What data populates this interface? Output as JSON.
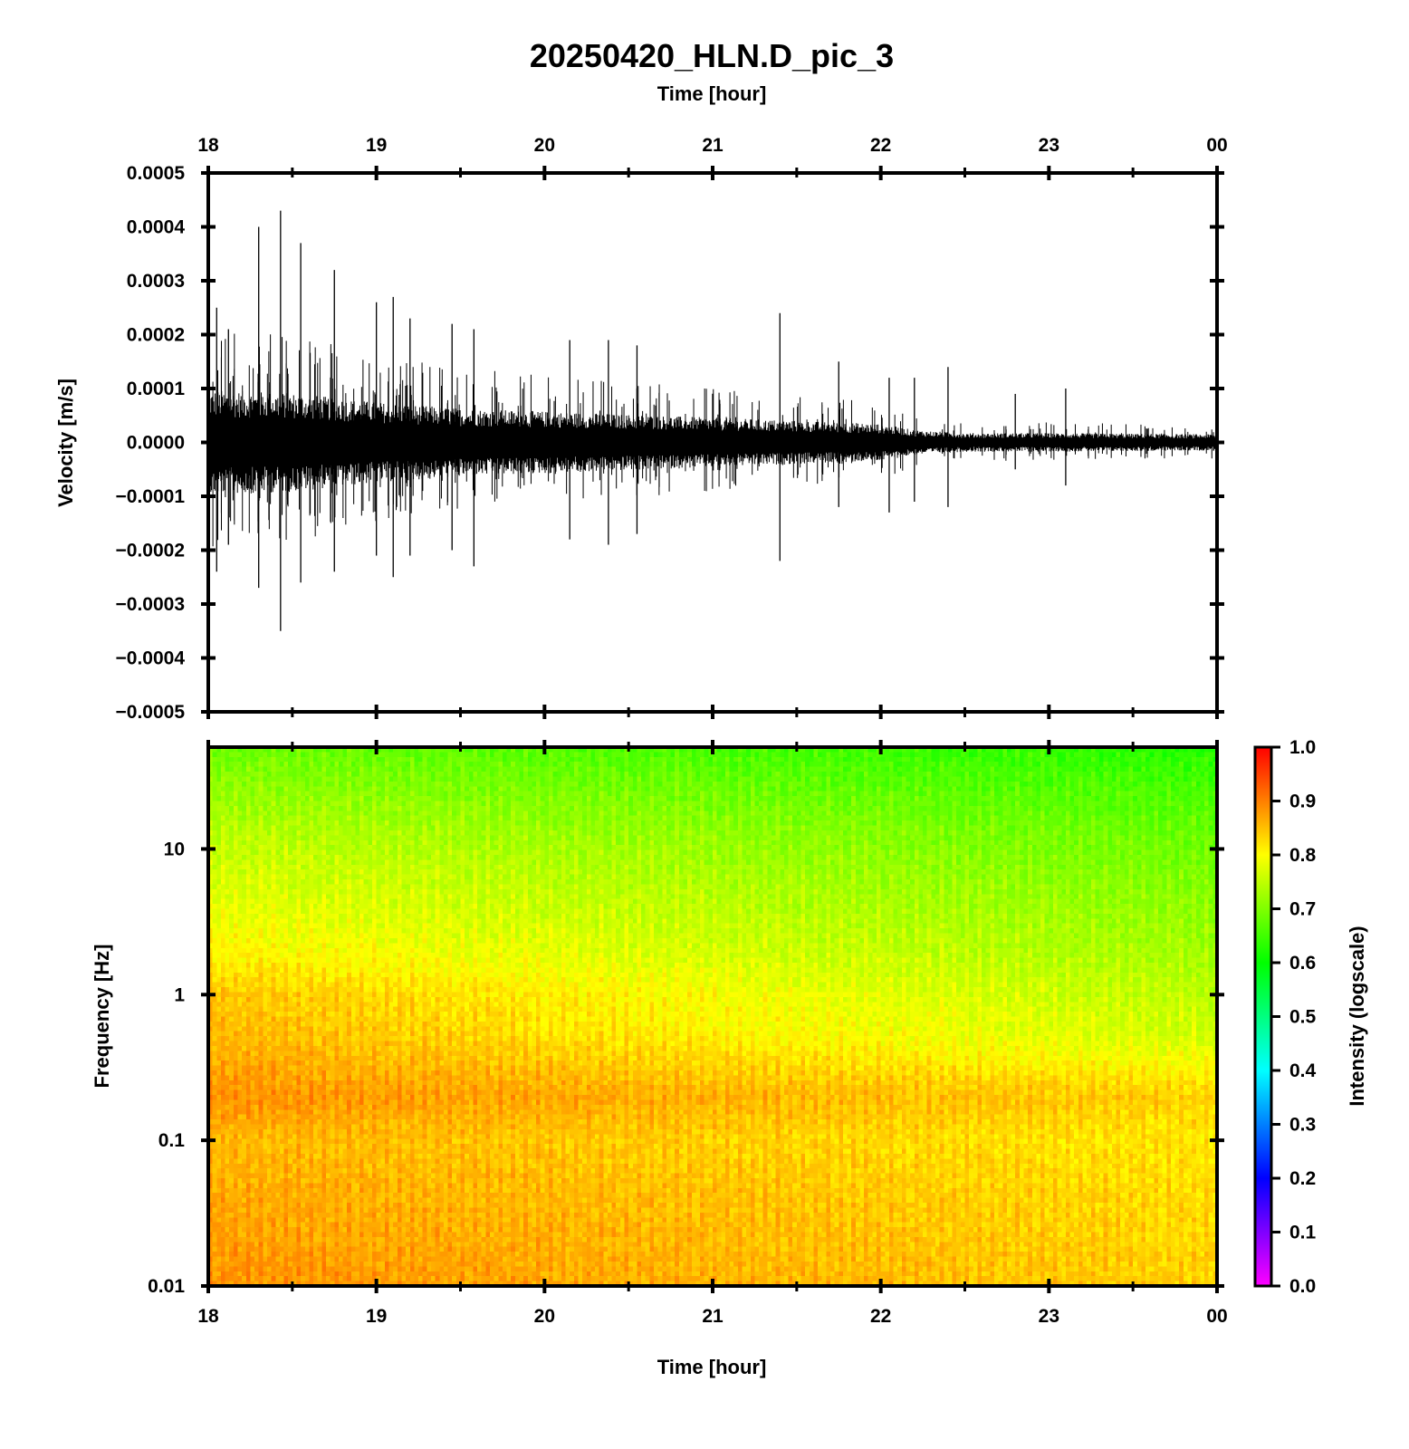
{
  "figure": {
    "title": "20250420_HLN.D_pic_3",
    "top_xlabel": "Time [hour]",
    "bottom_xlabel": "Time [hour]"
  },
  "chart_data": [
    {
      "type": "line",
      "panel": "waveform",
      "x_tick_labels": [
        "18",
        "19",
        "20",
        "21",
        "22",
        "23",
        "00"
      ],
      "x_ticks_hours": [
        18,
        19,
        20,
        21,
        22,
        23,
        24
      ],
      "xlim": [
        18,
        24
      ],
      "ylabel": "Velocity [m/s]",
      "y_tick_labels": [
        "0.0005",
        "0.0004",
        "0.0003",
        "0.0002",
        "0.0001",
        "0.0000",
        "−0.0001",
        "−0.0002",
        "−0.0003",
        "−0.0004",
        "−0.0005"
      ],
      "y_ticks": [
        0.0005,
        0.0004,
        0.0003,
        0.0002,
        0.0001,
        0.0,
        -0.0001,
        -0.0002,
        -0.0003,
        -0.0004,
        -0.0005
      ],
      "ylim": [
        -0.0005,
        0.0005
      ],
      "background_envelope": {
        "x_hours": [
          18.0,
          18.5,
          19.0,
          19.5,
          20.0,
          20.5,
          21.0,
          21.5,
          22.0,
          22.2,
          22.5,
          23.0,
          23.5,
          24.0
        ],
        "amplitude": [
          8.5e-05,
          8e-05,
          6.5e-05,
          5.5e-05,
          5e-05,
          4.5e-05,
          4e-05,
          3.5e-05,
          3e-05,
          2e-05,
          1.5e-05,
          1.5e-05,
          1.4e-05,
          1.3e-05
        ]
      },
      "spikes": {
        "x_hours": [
          18.05,
          18.12,
          18.3,
          18.43,
          18.55,
          18.75,
          19.0,
          19.1,
          19.2,
          19.45,
          19.58,
          20.15,
          20.38,
          20.55,
          21.4,
          21.75,
          22.05,
          22.2,
          22.4,
          22.8,
          23.1
        ],
        "peak": [
          0.00025,
          0.00021,
          0.0004,
          0.00043,
          0.00037,
          0.00032,
          0.00026,
          0.00027,
          0.00023,
          0.00022,
          0.00021,
          0.00019,
          0.00019,
          0.00018,
          0.00024,
          0.00015,
          0.00012,
          0.00012,
          0.00014,
          9e-05,
          0.0001
        ],
        "trough": [
          -0.00024,
          -0.00019,
          -0.00027,
          -0.00035,
          -0.00026,
          -0.00024,
          -0.00021,
          -0.00025,
          -0.00021,
          -0.0002,
          -0.00023,
          -0.00018,
          -0.00019,
          -0.00017,
          -0.00022,
          -0.00012,
          -0.00013,
          -0.00011,
          -0.00012,
          -5e-05,
          -8e-05
        ]
      }
    },
    {
      "type": "heatmap",
      "panel": "spectrogram",
      "x_tick_labels": [
        "18",
        "19",
        "20",
        "21",
        "22",
        "23",
        "00"
      ],
      "x_ticks_hours": [
        18,
        19,
        20,
        21,
        22,
        23,
        24
      ],
      "xlim": [
        18,
        24
      ],
      "ylabel": "Frequency [Hz]",
      "y_scale": "log",
      "y_tick_labels": [
        "10",
        "1",
        "0.1",
        "0.01"
      ],
      "y_ticks": [
        10,
        1,
        0.1,
        0.01
      ],
      "ylim": [
        0.01,
        50
      ],
      "intensity_rows": {
        "freq_hz": [
          0.01,
          0.05,
          0.1,
          0.2,
          0.5,
          1,
          2,
          5,
          10,
          20,
          50
        ],
        "intensity_at_18h": [
          0.88,
          0.86,
          0.85,
          0.88,
          0.85,
          0.84,
          0.8,
          0.77,
          0.75,
          0.72,
          0.68
        ],
        "intensity_at_24h": [
          0.83,
          0.82,
          0.81,
          0.83,
          0.76,
          0.74,
          0.72,
          0.7,
          0.68,
          0.66,
          0.62
        ]
      },
      "colorbar": {
        "label": "Intensity (logscale)",
        "tick_labels": [
          "1.0",
          "0.9",
          "0.8",
          "0.7",
          "0.6",
          "0.5",
          "0.4",
          "0.3",
          "0.2",
          "0.1",
          "0.0"
        ],
        "ticks": [
          1.0,
          0.9,
          0.8,
          0.7,
          0.6,
          0.5,
          0.4,
          0.3,
          0.2,
          0.1,
          0.0
        ],
        "range": [
          0,
          1
        ],
        "colormap_stops": [
          "#ff00ff",
          "#0000ff",
          "#00ffff",
          "#00ff00",
          "#ffff00",
          "#ff0000"
        ]
      }
    }
  ]
}
